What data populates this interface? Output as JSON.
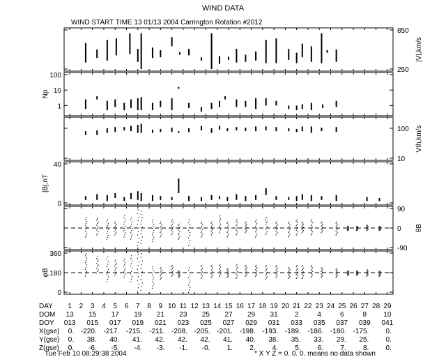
{
  "title": "WIND DATA",
  "subtitle": "WIND START TIME  13 01/13 2004 Carrington Rotation #2012",
  "footer_left": "Tue Feb 10 08:29:38 2004",
  "footer_right": "* X Y Z = 0. 0. 0. means no data shown",
  "table": {
    "labels": [
      "DAY",
      "DOM",
      "DOY",
      "X(gse)",
      "Y(gse)",
      "Z(gse)"
    ],
    "day": [
      "1",
      "2",
      "3",
      "4",
      "5",
      "6",
      "7",
      "8",
      "9",
      "10",
      "11",
      "12",
      "13",
      "14",
      "15",
      "16",
      "17",
      "18",
      "19",
      "20",
      "21",
      "22",
      "23",
      "24",
      "25",
      "26",
      "27",
      "28",
      "29"
    ],
    "dom": [
      "13",
      "15",
      "17",
      "19",
      "21",
      "23",
      "25",
      "27",
      "29",
      "31",
      "2",
      "4",
      "6",
      "8",
      "10"
    ],
    "doy": [
      "013",
      "015",
      "017",
      "019",
      "021",
      "023",
      "025",
      "027",
      "029",
      "031",
      "033",
      "035",
      "037",
      "039",
      "041"
    ],
    "x": [
      "0.",
      "-220.",
      "-217.",
      "-215.",
      "-211.",
      "-208.",
      "-205.",
      "-201.",
      "-198.",
      "-193.",
      "-189.",
      "-186.",
      "-180.",
      "-175.",
      "0."
    ],
    "y": [
      "0.",
      "38.",
      "40.",
      "41.",
      "42.",
      "42.",
      "42.",
      "41.",
      "40.",
      "38.",
      "35.",
      "33.",
      "29.",
      "25.",
      "0."
    ],
    "z": [
      "0.",
      "-6.",
      "-5.",
      "-4.",
      "-3.",
      "-1.",
      "-0.",
      "1.",
      "2.",
      "4.",
      "5.",
      "6.",
      "7.",
      "8.",
      "0."
    ]
  },
  "chart_data": [
    {
      "type": "line",
      "ylabel": "|V|,km/s",
      "yticks": [
        "850",
        "250"
      ],
      "ylim": [
        250,
        850
      ],
      "scale": "linear",
      "tick_side": "right",
      "bursts": [
        [
          2.4,
          350,
          650
        ],
        [
          3.4,
          420,
          550
        ],
        [
          4.3,
          380,
          700
        ],
        [
          5.1,
          460,
          720
        ],
        [
          6.3,
          480,
          800
        ],
        [
          7.0,
          360,
          560
        ],
        [
          7.3,
          250,
          800
        ],
        [
          8.3,
          420,
          580
        ],
        [
          9.0,
          430,
          540
        ],
        [
          10.0,
          600,
          740
        ],
        [
          10.7,
          470,
          510
        ],
        [
          11.5,
          460,
          560
        ],
        [
          12.6,
          380,
          430
        ],
        [
          13.5,
          250,
          800
        ],
        [
          14.2,
          330,
          450
        ],
        [
          15.0,
          390,
          440
        ],
        [
          15.7,
          350,
          560
        ],
        [
          16.5,
          360,
          470
        ],
        [
          17.4,
          380,
          520
        ],
        [
          18.3,
          340,
          700
        ],
        [
          19.2,
          340,
          720
        ],
        [
          20.3,
          390,
          560
        ],
        [
          21.0,
          340,
          500
        ],
        [
          21.5,
          430,
          640
        ],
        [
          22.3,
          360,
          600
        ],
        [
          23.2,
          340,
          800
        ],
        [
          23.7,
          500,
          540
        ],
        [
          24.5,
          360,
          550
        ]
      ]
    },
    {
      "type": "line",
      "ylabel": "Np",
      "yticks": [
        "100",
        "10",
        "1"
      ],
      "ylim": [
        0.3,
        100
      ],
      "scale": "log",
      "tick_side": "left",
      "bursts": [
        [
          2.4,
          0.6,
          2.5
        ],
        [
          3.4,
          2.5,
          4
        ],
        [
          4.3,
          0.5,
          2
        ],
        [
          5.0,
          0.8,
          2.5
        ],
        [
          5.8,
          0.5,
          1.5
        ],
        [
          6.4,
          0.7,
          2.5
        ],
        [
          7.0,
          0.5,
          3
        ],
        [
          7.3,
          0.5,
          3.5
        ],
        [
          8.3,
          0.5,
          1.5
        ],
        [
          9.0,
          0.8,
          2
        ],
        [
          10.0,
          0.5,
          3
        ],
        [
          10.6,
          12,
          16
        ],
        [
          11.5,
          0.7,
          1.5
        ],
        [
          12.6,
          0.4,
          0.8
        ],
        [
          13.5,
          0.6,
          1.5
        ],
        [
          14.2,
          0.8,
          2
        ],
        [
          14.7,
          2.5,
          4
        ],
        [
          15.7,
          0.8,
          2.5
        ],
        [
          16.5,
          0.8,
          2
        ],
        [
          17.4,
          0.6,
          3
        ],
        [
          18.3,
          1,
          3
        ],
        [
          19.2,
          1,
          2
        ],
        [
          20.3,
          0.6,
          1
        ],
        [
          21.0,
          0.5,
          1
        ],
        [
          21.5,
          0.6,
          1.2
        ],
        [
          22.3,
          0.5,
          1.5
        ],
        [
          23.3,
          0.7,
          1.2
        ],
        [
          24.5,
          0.8,
          2
        ]
      ]
    },
    {
      "type": "line",
      "ylabel": "Vth,km/s",
      "yticks": [
        "100",
        "10"
      ],
      "ylim": [
        10,
        200
      ],
      "scale": "log",
      "tick_side": "right",
      "bursts": [
        [
          2.4,
          60,
          80
        ],
        [
          3.4,
          60,
          85
        ],
        [
          4.3,
          70,
          100
        ],
        [
          5.0,
          75,
          110
        ],
        [
          5.8,
          85,
          110
        ],
        [
          6.4,
          80,
          120
        ],
        [
          7.0,
          70,
          130
        ],
        [
          7.3,
          70,
          140
        ],
        [
          8.3,
          70,
          90
        ],
        [
          9.0,
          75,
          95
        ],
        [
          10.0,
          75,
          105
        ],
        [
          10.6,
          70,
          80
        ],
        [
          11.5,
          75,
          100
        ],
        [
          12.6,
          85,
          120
        ],
        [
          13.5,
          70,
          100
        ],
        [
          14.2,
          90,
          120
        ],
        [
          14.9,
          80,
          100
        ],
        [
          15.7,
          85,
          110
        ],
        [
          16.5,
          80,
          105
        ],
        [
          17.4,
          80,
          115
        ],
        [
          18.3,
          85,
          115
        ],
        [
          19.2,
          80,
          110
        ],
        [
          20.3,
          80,
          100
        ],
        [
          21.0,
          75,
          95
        ],
        [
          21.5,
          80,
          115
        ],
        [
          22.3,
          70,
          115
        ],
        [
          23.2,
          80,
          105
        ],
        [
          24.5,
          75,
          110
        ]
      ]
    },
    {
      "type": "line",
      "ylabel": "|B|,nT",
      "yticks": [
        "40",
        "0"
      ],
      "ylim": [
        0,
        40
      ],
      "scale": "linear",
      "tick_side": "left",
      "bursts": [
        [
          2.4,
          3,
          7
        ],
        [
          3.4,
          3,
          9
        ],
        [
          4.3,
          2,
          8
        ],
        [
          5.0,
          5,
          10
        ],
        [
          5.8,
          2,
          6
        ],
        [
          6.4,
          4,
          10
        ],
        [
          7.0,
          3,
          12
        ],
        [
          7.3,
          2,
          10
        ],
        [
          8.3,
          2,
          8
        ],
        [
          9.0,
          3,
          7
        ],
        [
          10.0,
          3,
          6
        ],
        [
          10.6,
          10,
          25
        ],
        [
          11.5,
          2,
          7
        ],
        [
          12.6,
          2,
          6
        ],
        [
          13.5,
          3,
          8
        ],
        [
          14.2,
          4,
          7
        ],
        [
          14.9,
          2,
          6
        ],
        [
          15.7,
          3,
          9
        ],
        [
          16.5,
          2,
          7
        ],
        [
          17.4,
          3,
          8
        ],
        [
          18.3,
          8,
          15
        ],
        [
          19.2,
          3,
          7
        ],
        [
          20.3,
          3,
          6
        ],
        [
          21.0,
          2,
          7
        ],
        [
          21.5,
          3,
          9
        ],
        [
          22.3,
          2,
          8
        ],
        [
          23.2,
          3,
          7
        ],
        [
          24.5,
          2,
          8
        ],
        [
          27.2,
          2,
          6
        ],
        [
          28.3,
          2,
          5
        ]
      ]
    },
    {
      "type": "scatter",
      "ylabel": "θB",
      "yticks": [
        "90",
        "0",
        "-90"
      ],
      "ylim": [
        -90,
        90
      ],
      "scale": "linear",
      "tick_side": "right",
      "dashed_ref": 0,
      "bursts": [
        [
          2.4,
          -40,
          50
        ],
        [
          3.4,
          -30,
          45
        ],
        [
          4.3,
          -50,
          40
        ],
        [
          5.0,
          -30,
          30
        ],
        [
          5.8,
          -40,
          60
        ],
        [
          6.4,
          -50,
          50
        ],
        [
          7.0,
          -80,
          85
        ],
        [
          7.3,
          -70,
          80
        ],
        [
          8.3,
          -60,
          40
        ],
        [
          9.0,
          -40,
          30
        ],
        [
          10.0,
          -30,
          40
        ],
        [
          10.6,
          -50,
          20
        ],
        [
          11.5,
          -80,
          40
        ],
        [
          12.6,
          -40,
          30
        ],
        [
          13.5,
          -30,
          30
        ],
        [
          14.2,
          -20,
          60
        ],
        [
          14.9,
          -40,
          30
        ],
        [
          15.7,
          -30,
          40
        ],
        [
          16.5,
          -20,
          30
        ],
        [
          17.4,
          -40,
          40
        ],
        [
          18.3,
          -30,
          50
        ],
        [
          19.2,
          -30,
          30
        ],
        [
          20.3,
          -40,
          30
        ],
        [
          21.0,
          -30,
          40
        ],
        [
          21.5,
          -20,
          30
        ],
        [
          22.3,
          -30,
          40
        ],
        [
          23.2,
          -20,
          30
        ],
        [
          24.5,
          -30,
          30
        ],
        [
          25.5,
          -10,
          10
        ],
        [
          26.3,
          -10,
          10
        ],
        [
          27.2,
          -10,
          15
        ],
        [
          28.3,
          -10,
          10
        ]
      ]
    },
    {
      "type": "scatter",
      "ylabel": "φB",
      "yticks": [
        "360",
        "180",
        "0"
      ],
      "ylim": [
        0,
        360
      ],
      "scale": "linear",
      "tick_side": "left",
      "dashed_ref": 180,
      "bursts": [
        [
          2.4,
          150,
          360
        ],
        [
          3.4,
          180,
          330
        ],
        [
          4.3,
          100,
          330
        ],
        [
          5.0,
          160,
          300
        ],
        [
          5.8,
          140,
          310
        ],
        [
          6.4,
          100,
          340
        ],
        [
          7.0,
          10,
          350
        ],
        [
          7.3,
          20,
          360
        ],
        [
          8.3,
          40,
          240
        ],
        [
          9.0,
          120,
          230
        ],
        [
          10.0,
          150,
          250
        ],
        [
          10.6,
          140,
          200
        ],
        [
          11.5,
          0,
          230
        ],
        [
          12.6,
          130,
          250
        ],
        [
          13.5,
          140,
          250
        ],
        [
          14.2,
          150,
          260
        ],
        [
          14.9,
          140,
          220
        ],
        [
          15.7,
          130,
          260
        ],
        [
          16.5,
          150,
          250
        ],
        [
          17.4,
          150,
          250
        ],
        [
          18.3,
          120,
          250
        ],
        [
          19.2,
          140,
          250
        ],
        [
          20.3,
          130,
          230
        ],
        [
          21.0,
          130,
          250
        ],
        [
          21.5,
          130,
          250
        ],
        [
          22.3,
          140,
          250
        ],
        [
          23.2,
          140,
          230
        ],
        [
          24.5,
          140,
          220
        ],
        [
          25.5,
          160,
          200
        ],
        [
          26.3,
          160,
          200
        ],
        [
          27.2,
          150,
          210
        ],
        [
          28.3,
          150,
          200
        ]
      ]
    }
  ]
}
